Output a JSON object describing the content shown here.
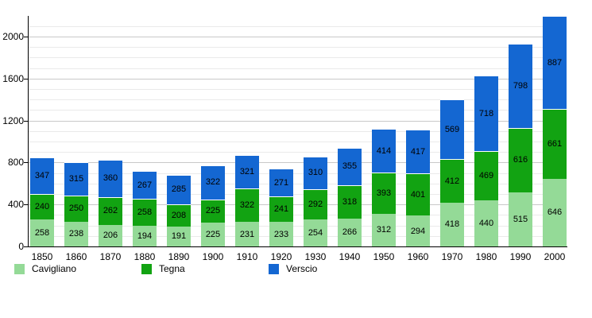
{
  "chart_data": {
    "type": "bar",
    "stacked": true,
    "title": "",
    "xlabel": "",
    "ylabel": "",
    "categories": [
      "1850",
      "1860",
      "1870",
      "1880",
      "1890",
      "1900",
      "1910",
      "1920",
      "1930",
      "1940",
      "1950",
      "1960",
      "1970",
      "1980",
      "1990",
      "2000"
    ],
    "series": [
      {
        "name": "Cavigliano",
        "color": "#94da97",
        "values": [
          258,
          238,
          206,
          194,
          191,
          225,
          231,
          233,
          254,
          266,
          312,
          294,
          418,
          440,
          515,
          646
        ]
      },
      {
        "name": "Tegna",
        "color": "#12a312",
        "values": [
          240,
          250,
          262,
          258,
          208,
          225,
          322,
          241,
          292,
          318,
          393,
          401,
          412,
          469,
          616,
          661
        ]
      },
      {
        "name": "Verscio",
        "color": "#1467d2",
        "values": [
          347,
          315,
          360,
          267,
          285,
          322,
          321,
          271,
          310,
          355,
          414,
          417,
          569,
          718,
          798,
          887
        ]
      }
    ],
    "y_axis": {
      "ticks": [
        0,
        400,
        800,
        1200,
        1600,
        2000
      ],
      "max": 2196,
      "minor_step": 100,
      "major_step": 400,
      "grid_max": 2100
    },
    "grid": true,
    "legend_position": "bottom",
    "background": "#ffffff",
    "value_labels": "inside-segments"
  }
}
